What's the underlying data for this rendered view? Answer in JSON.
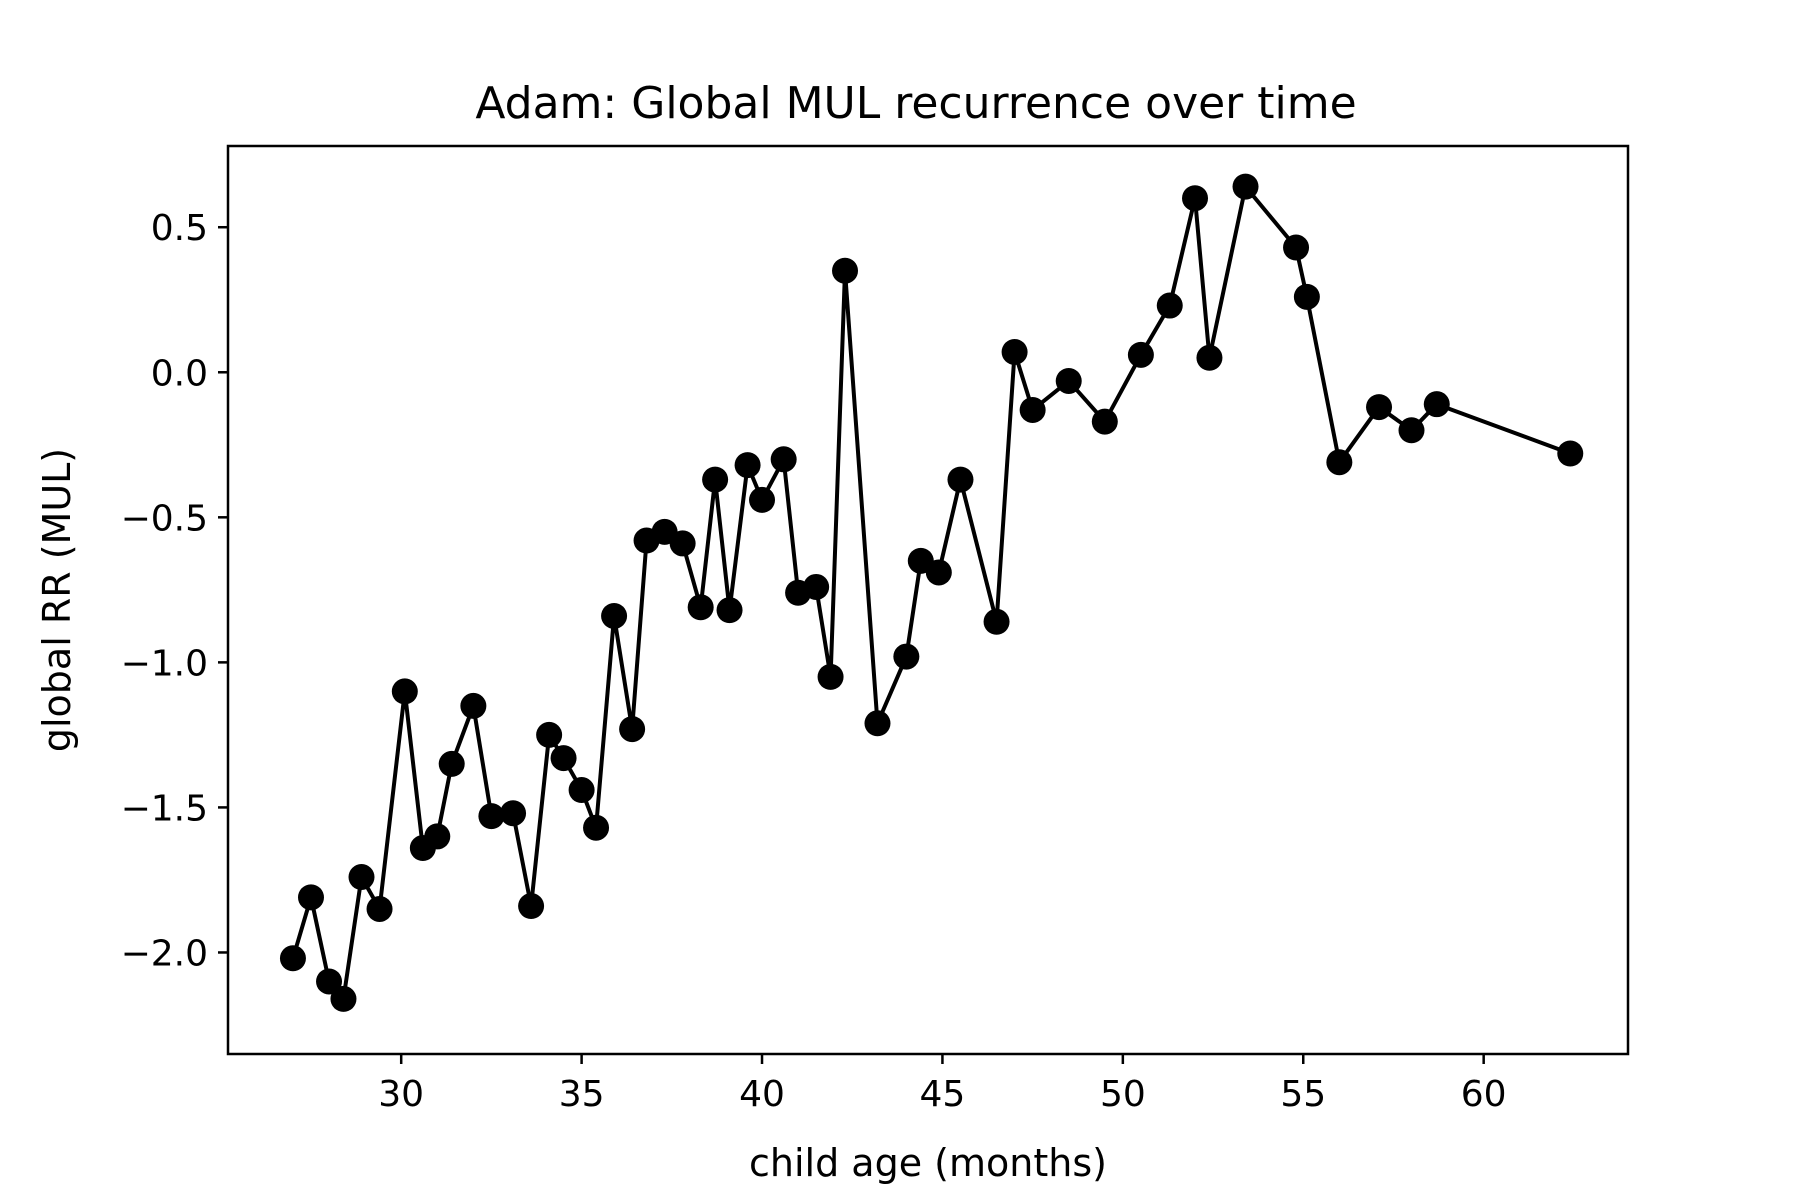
{
  "chart_data": {
    "type": "line",
    "title": "Adam: Global MUL recurrence over time",
    "xlabel": "child age (months)",
    "ylabel": "global RR (MUL)",
    "xlim": [
      25.2,
      64.0
    ],
    "ylim": [
      -2.35,
      0.78
    ],
    "xticks": [
      30,
      35,
      40,
      45,
      50,
      55,
      60
    ],
    "yticks": [
      0.5,
      0.0,
      -0.5,
      -1.0,
      -1.5,
      -2.0
    ],
    "ytick_labels": [
      "0.5",
      "0.0",
      "−0.5",
      "−1.0",
      "−1.5",
      "−2.0"
    ],
    "grid": false,
    "legend": "none",
    "line_color": "#000000",
    "marker": "circle",
    "series": [
      {
        "x": [
          27.0,
          27.5,
          28.0,
          28.4,
          28.9,
          29.4,
          30.1,
          30.6,
          31.0,
          31.4,
          32.0,
          32.5,
          33.1,
          33.6,
          34.1,
          34.5,
          35.0,
          35.4,
          35.9,
          36.4,
          36.8,
          37.3,
          37.8,
          38.3,
          38.7,
          39.1,
          39.6,
          40.0,
          40.6,
          41.0,
          41.5,
          41.9,
          42.3,
          43.2,
          44.0,
          44.4,
          44.9,
          45.5,
          46.5,
          47.0,
          47.5,
          48.5,
          49.5,
          50.5,
          51.3,
          52.0,
          52.4,
          53.4,
          54.8,
          55.1,
          56.0,
          57.1,
          58.0,
          58.7,
          62.4
        ],
        "y": [
          -2.02,
          -1.81,
          -2.1,
          -2.16,
          -1.74,
          -1.85,
          -1.1,
          -1.64,
          -1.6,
          -1.35,
          -1.15,
          -1.53,
          -1.52,
          -1.84,
          -1.25,
          -1.33,
          -1.44,
          -1.57,
          -0.84,
          -1.23,
          -0.58,
          -0.55,
          -0.59,
          -0.81,
          -0.37,
          -0.82,
          -0.32,
          -0.44,
          -0.3,
          -0.76,
          -0.74,
          -1.05,
          0.35,
          -1.21,
          -0.98,
          -0.65,
          -0.69,
          -0.37,
          -0.86,
          0.07,
          -0.13,
          -0.03,
          -0.17,
          0.06,
          0.23,
          0.6,
          0.05,
          0.64,
          0.43,
          0.26,
          -0.31,
          -0.12,
          -0.2,
          -0.11,
          -0.28
        ]
      }
    ]
  }
}
